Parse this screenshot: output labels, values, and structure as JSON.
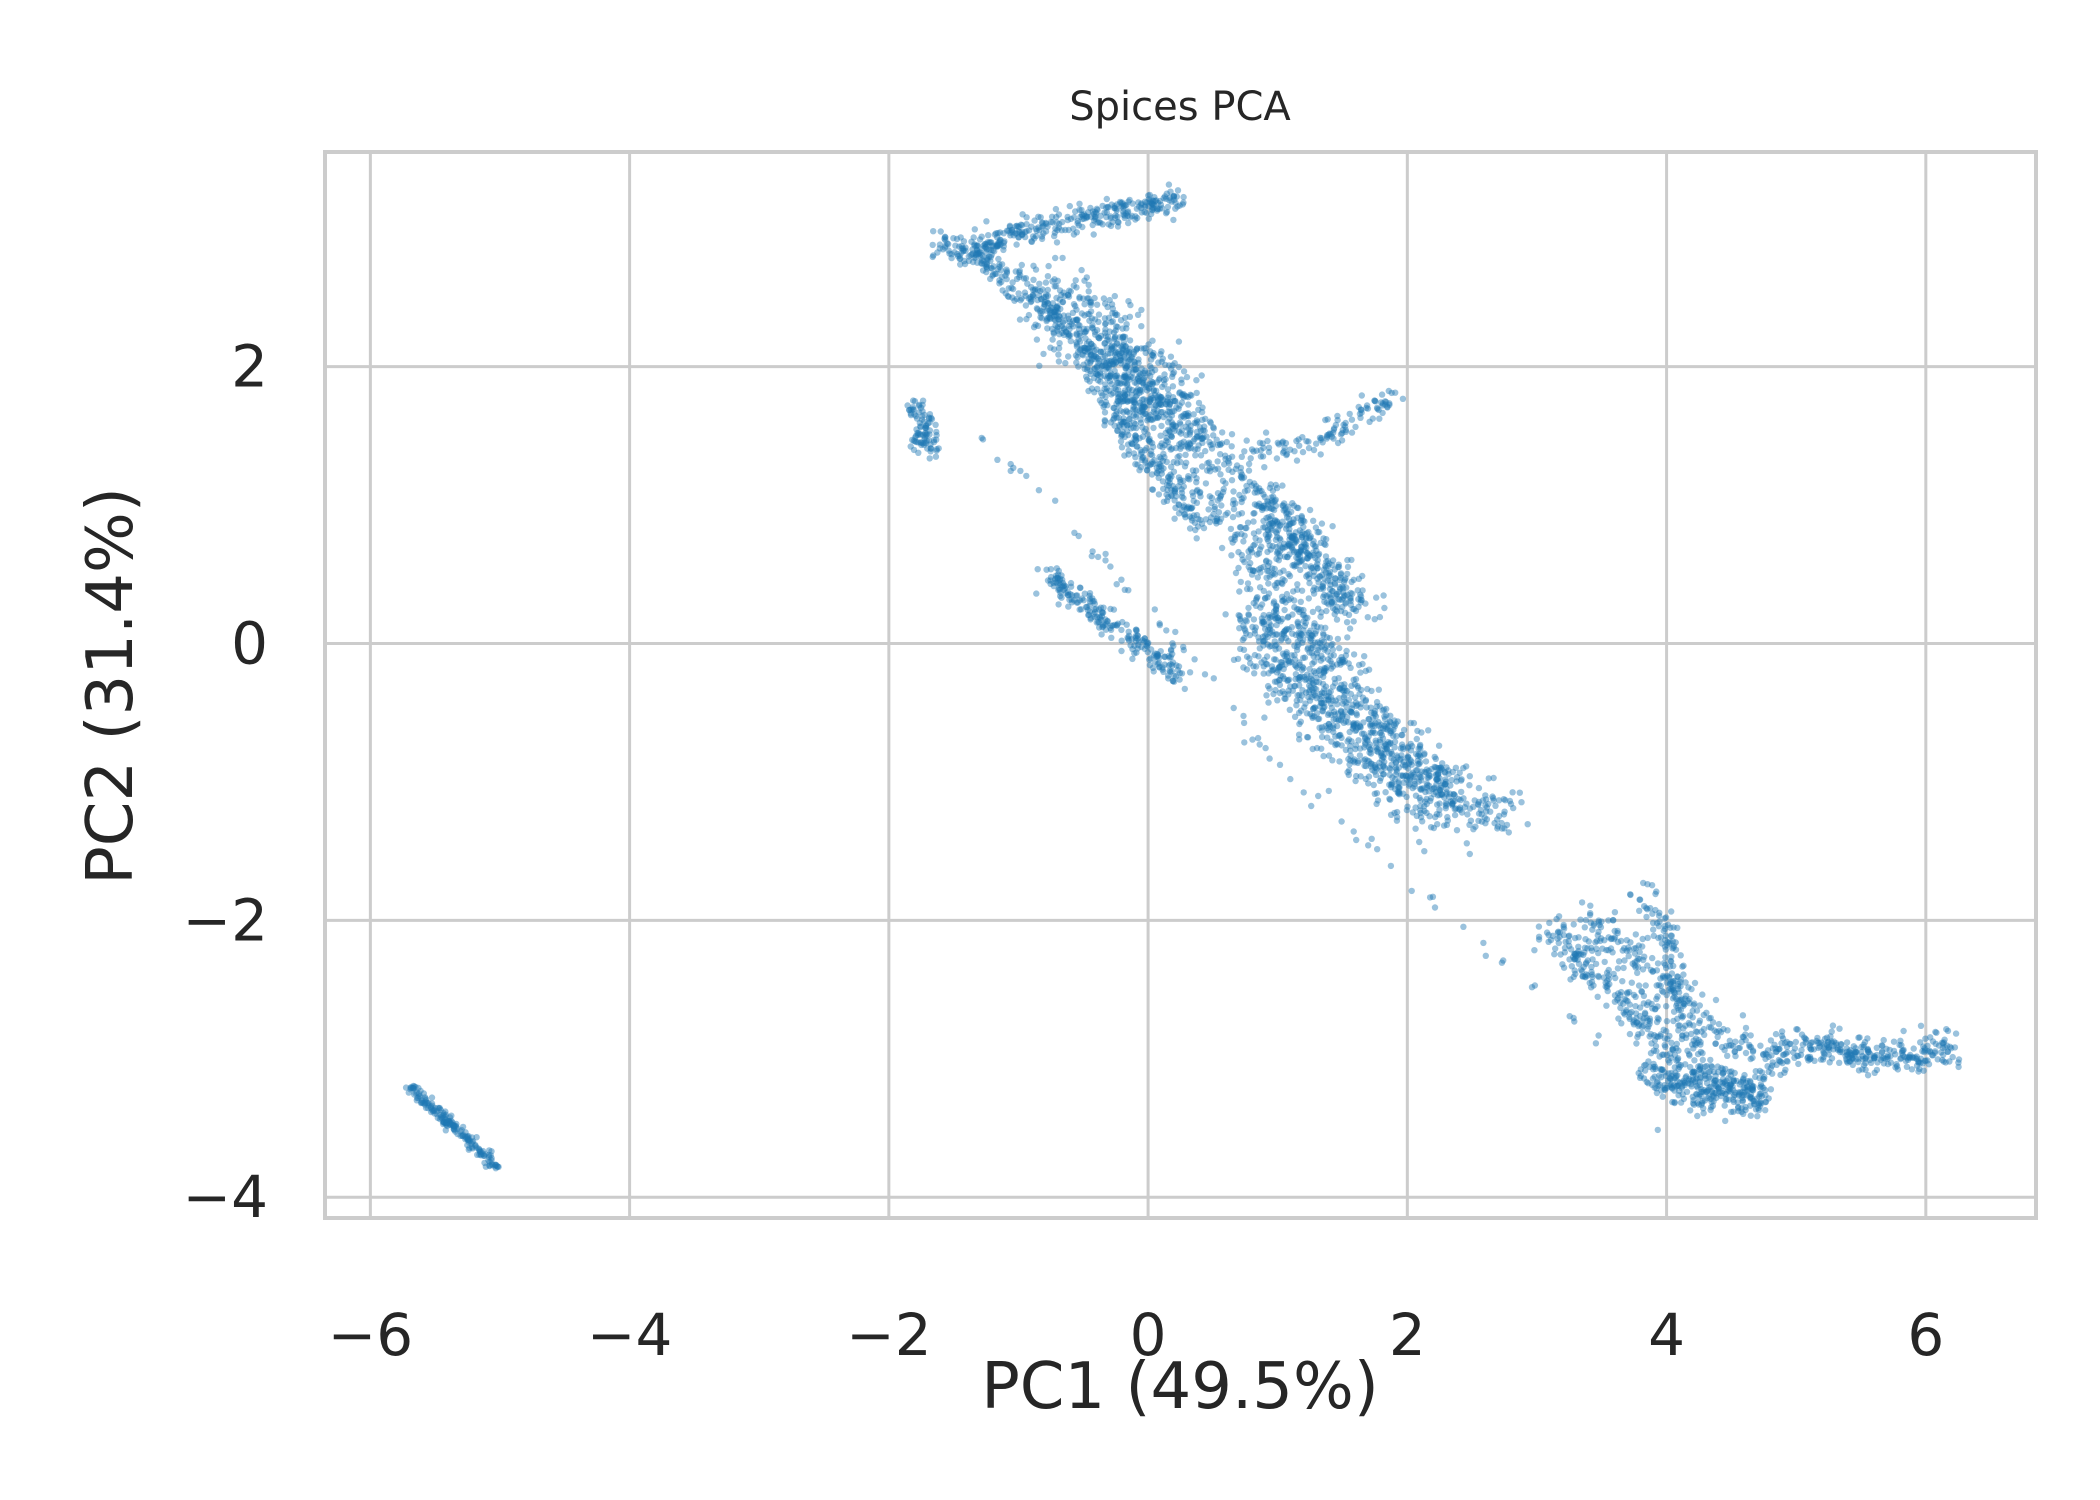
{
  "chart_data": {
    "type": "scatter",
    "title": "Spices PCA",
    "xlabel": "PC1 (49.5%)",
    "ylabel": "PC2 (31.4%)",
    "xlim": [
      -6.35,
      6.85
    ],
    "ylim": [
      -4.15,
      3.55
    ],
    "x_ticks": [
      -6,
      -4,
      -2,
      0,
      2,
      4,
      6
    ],
    "x_tick_labels": [
      "−6",
      "−4",
      "−2",
      "0",
      "2",
      "4",
      "6"
    ],
    "y_ticks": [
      -4,
      -2,
      0,
      2
    ],
    "y_tick_labels": [
      "−4",
      "−2",
      "0",
      "2"
    ],
    "grid": true,
    "marker_color": "#1f77b4",
    "marker_alpha": 0.45,
    "clusters": [
      {
        "points": [
          [
            -5.7,
            -3.2
          ],
          [
            -5.02,
            -3.78
          ]
        ],
        "n": 180,
        "spread": 0.02
      },
      {
        "points": [
          [
            -1.8,
            1.75
          ],
          [
            -1.7,
            1.55
          ],
          [
            -1.8,
            1.45
          ],
          [
            -1.62,
            1.4
          ]
        ],
        "n": 90,
        "spread": 0.04
      },
      {
        "points": [
          [
            -1.6,
            2.9
          ],
          [
            -1.35,
            2.8
          ],
          [
            -1.1,
            2.95
          ],
          [
            -0.8,
            3.0
          ],
          [
            -0.5,
            3.08
          ],
          [
            -0.2,
            3.12
          ],
          [
            0.25,
            3.2
          ]
        ],
        "n": 360,
        "spread": 0.05
      },
      {
        "points": [
          [
            -1.35,
            2.85
          ],
          [
            -0.8,
            2.4
          ],
          [
            -0.3,
            2.0
          ],
          [
            0.1,
            1.72
          ],
          [
            0.5,
            1.4
          ],
          [
            0.9,
            1.0
          ],
          [
            1.3,
            0.6
          ],
          [
            1.5,
            0.3
          ]
        ],
        "n": 500,
        "spread": 0.08
      },
      {
        "points": [
          [
            -0.8,
            2.55
          ],
          [
            -0.3,
            2.2
          ],
          [
            0.0,
            1.85
          ],
          [
            0.35,
            1.6
          ]
        ],
        "n": 450,
        "spread": 0.14
      },
      {
        "points": [
          [
            -0.5,
            2.2
          ],
          [
            -0.2,
            1.8
          ],
          [
            0.1,
            1.4
          ],
          [
            0.6,
            0.9
          ],
          [
            1.0,
            0.4
          ],
          [
            1.4,
            -0.1
          ],
          [
            1.8,
            -0.6
          ],
          [
            2.2,
            -1.0
          ],
          [
            2.8,
            -1.25
          ]
        ],
        "n": 700,
        "spread": 0.09
      },
      {
        "points": [
          [
            0.8,
            0.2
          ],
          [
            1.2,
            -0.3
          ],
          [
            1.6,
            -0.7
          ],
          [
            2.0,
            -1.0
          ],
          [
            2.4,
            -1.2
          ]
        ],
        "n": 700,
        "spread": 0.13
      },
      {
        "points": [
          [
            0.9,
            1.0
          ],
          [
            1.3,
            0.55
          ],
          [
            1.6,
            0.25
          ]
        ],
        "n": 250,
        "spread": 0.1
      },
      {
        "points": [
          [
            0.8,
            1.35
          ],
          [
            1.3,
            1.45
          ],
          [
            1.9,
            1.8
          ]
        ],
        "n": 110,
        "spread": 0.05
      },
      {
        "points": [
          [
            -0.4,
            1.8
          ],
          [
            0.1,
            1.2
          ],
          [
            0.4,
            0.85
          ]
        ],
        "n": 150,
        "spread": 0.05
      },
      {
        "points": [
          [
            -0.75,
            0.5
          ],
          [
            -0.4,
            0.2
          ],
          [
            0.0,
            -0.05
          ],
          [
            0.3,
            -0.25
          ]
        ],
        "n": 220,
        "spread": 0.05
      },
      {
        "points": [
          [
            -1.3,
            1.5
          ],
          [
            -0.6,
            0.85
          ],
          [
            0.2,
            0.05
          ],
          [
            1.0,
            -0.9
          ],
          [
            2.0,
            -1.7
          ],
          [
            3.0,
            -2.5
          ],
          [
            3.5,
            -2.9
          ]
        ],
        "n": 70,
        "spread": 0.03
      },
      {
        "points": [
          [
            3.1,
            -2.1
          ],
          [
            3.5,
            -2.45
          ],
          [
            3.9,
            -2.8
          ],
          [
            4.3,
            -3.1
          ],
          [
            4.7,
            -3.3
          ]
        ],
        "n": 320,
        "spread": 0.07
      },
      {
        "points": [
          [
            3.4,
            -2.0
          ],
          [
            3.9,
            -2.4
          ],
          [
            4.4,
            -2.8
          ],
          [
            4.8,
            -3.05
          ]
        ],
        "n": 200,
        "spread": 0.08
      },
      {
        "points": [
          [
            3.8,
            -1.75
          ],
          [
            3.95,
            -2.0
          ],
          [
            4.1,
            -2.5
          ],
          [
            4.2,
            -2.9
          ]
        ],
        "n": 120,
        "spread": 0.05
      },
      {
        "points": [
          [
            3.9,
            -3.1
          ],
          [
            4.3,
            -3.25
          ],
          [
            4.75,
            -3.25
          ]
        ],
        "n": 250,
        "spread": 0.08
      },
      {
        "points": [
          [
            4.8,
            -2.95
          ],
          [
            5.2,
            -2.9
          ],
          [
            5.6,
            -3.0
          ],
          [
            6.0,
            -2.95
          ],
          [
            6.2,
            -2.95
          ]
        ],
        "n": 300,
        "spread": 0.06
      }
    ]
  }
}
